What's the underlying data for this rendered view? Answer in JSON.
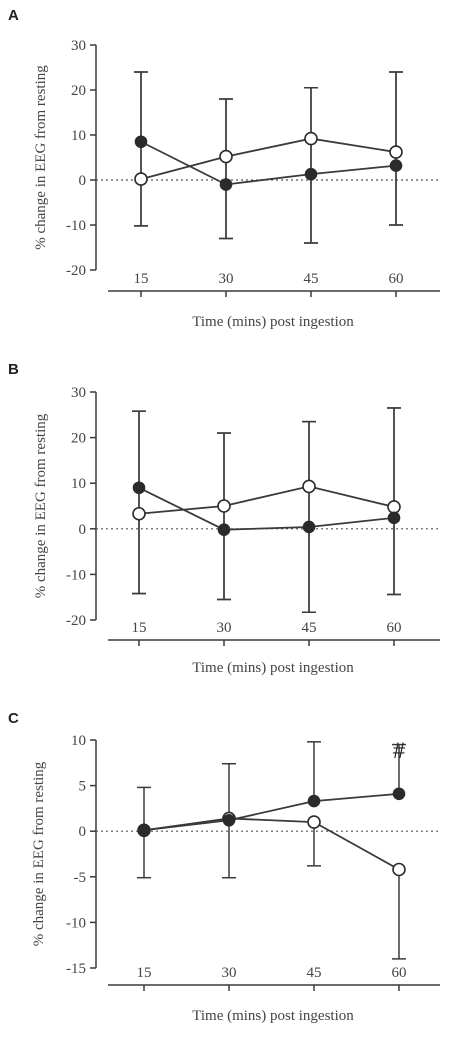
{
  "chart_data": [
    {
      "panel": "A",
      "type": "line",
      "x": [
        15,
        30,
        45,
        60
      ],
      "xlabel": "Time (mins) post ingestion",
      "ylabel": "% change in EEG from resting",
      "ylim": [
        -20,
        30
      ],
      "yticks": [
        -20,
        -10,
        0,
        10,
        20,
        30
      ],
      "reference_line": 0,
      "series": [
        {
          "marker": "filled",
          "values": [
            8.5,
            -1,
            1.3,
            3.2
          ],
          "err_upper": [
            24,
            18,
            20.5,
            24
          ],
          "err_lower": [
            -10.2,
            -13,
            -14,
            -10
          ]
        },
        {
          "marker": "open",
          "values": [
            0.2,
            5.2,
            9.2,
            6.2
          ],
          "err_upper": [
            24,
            18,
            20.5,
            24
          ],
          "err_lower": [
            -10.2,
            -13,
            -14,
            -10
          ]
        }
      ],
      "annotations": []
    },
    {
      "panel": "B",
      "type": "line",
      "x": [
        15,
        30,
        45,
        60
      ],
      "xlabel": "Time (mins) post ingestion",
      "ylabel": "% change in EEG from resting",
      "ylim": [
        -20,
        30
      ],
      "yticks": [
        -20,
        -10,
        0,
        10,
        20,
        30
      ],
      "reference_line": 0,
      "series": [
        {
          "marker": "filled",
          "values": [
            9,
            -0.2,
            0.4,
            2.4
          ],
          "err_upper": [
            25.8,
            21,
            23.5,
            26.5
          ],
          "err_lower": [
            -14.2,
            -15.5,
            -18.3,
            -14.4
          ]
        },
        {
          "marker": "open",
          "values": [
            3.3,
            5,
            9.3,
            4.8
          ],
          "err_upper": [
            25.8,
            21,
            23.5,
            26.5
          ],
          "err_lower": [
            -14.2,
            -15.5,
            -18.3,
            -14.4
          ]
        }
      ],
      "annotations": []
    },
    {
      "panel": "C",
      "type": "line",
      "x": [
        15,
        30,
        45,
        60
      ],
      "xlabel": "Time (mins) post ingestion",
      "ylabel": "% change in EEG from resting",
      "ylim": [
        -15,
        10
      ],
      "yticks": [
        -15,
        -10,
        -5,
        0,
        5,
        10
      ],
      "reference_line": 0,
      "series": [
        {
          "marker": "filled",
          "values": [
            0.1,
            1.2,
            3.3,
            4.1
          ],
          "err_upper": [
            4.8,
            7.4,
            9.8,
            9.5
          ],
          "err_lower": [
            null,
            null,
            null,
            null
          ]
        },
        {
          "marker": "open",
          "values": [
            0.1,
            1.4,
            1,
            -4.2
          ],
          "err_upper": [
            null,
            null,
            null,
            null
          ],
          "err_lower": [
            -5.1,
            -5.1,
            -3.8,
            -14
          ]
        }
      ],
      "annotations": [
        {
          "x": 60,
          "text": "#"
        }
      ]
    }
  ]
}
